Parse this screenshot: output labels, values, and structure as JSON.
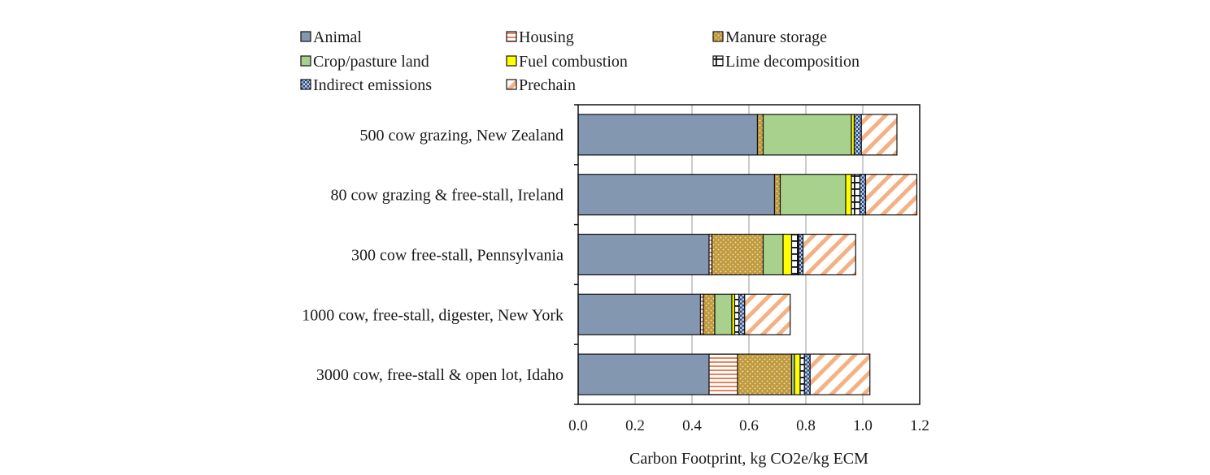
{
  "chart_data": {
    "type": "bar",
    "orientation": "horizontal",
    "stacked": true,
    "title": "",
    "xlabel": "Carbon Footprint, kg CO2e/kg ECM",
    "ylabel": "",
    "xlim": [
      0,
      1.2
    ],
    "xticks": [
      "0.0",
      "0.2",
      "0.4",
      "0.6",
      "0.8",
      "1.0",
      "1.2"
    ],
    "grid": "vertical",
    "legend_position": "top",
    "categories": [
      "500 cow grazing, New Zealand",
      "80 cow grazing & free-stall, Ireland",
      "300 cow free-stall, Pennsylvania",
      "1000 cow, free-stall, digester, New York",
      "3000 cow, free-stall & open lot, Idaho"
    ],
    "series": [
      {
        "name": "Animal",
        "color": "#8497b0",
        "pattern": "solid",
        "values": [
          0.63,
          0.69,
          0.46,
          0.43,
          0.46
        ]
      },
      {
        "name": "Housing",
        "color": "#f4b183",
        "pattern": "horizontal-lines",
        "values": [
          0.0,
          0.0,
          0.01,
          0.01,
          0.1
        ]
      },
      {
        "name": "Manure storage",
        "color": "#c09a3e",
        "pattern": "dots",
        "values": [
          0.02,
          0.02,
          0.18,
          0.04,
          0.19
        ]
      },
      {
        "name": "Crop/pasture land",
        "color": "#a9d18e",
        "pattern": "solid",
        "values": [
          0.31,
          0.23,
          0.07,
          0.06,
          0.01
        ]
      },
      {
        "name": "Fuel combustion",
        "color": "#ffff00",
        "pattern": "solid",
        "values": [
          0.01,
          0.02,
          0.03,
          0.01,
          0.02
        ]
      },
      {
        "name": "Lime decomposition",
        "color": "#ffffff",
        "pattern": "vertical-lines",
        "values": [
          0.0,
          0.03,
          0.025,
          0.015,
          0.015
        ]
      },
      {
        "name": "Indirect emissions",
        "color": "#2e4a7a",
        "pattern": "checker",
        "values": [
          0.025,
          0.02,
          0.015,
          0.02,
          0.02
        ]
      },
      {
        "name": "Prechain",
        "color": "#f4b183",
        "pattern": "diagonal",
        "values": [
          0.125,
          0.18,
          0.185,
          0.16,
          0.21
        ]
      }
    ]
  }
}
